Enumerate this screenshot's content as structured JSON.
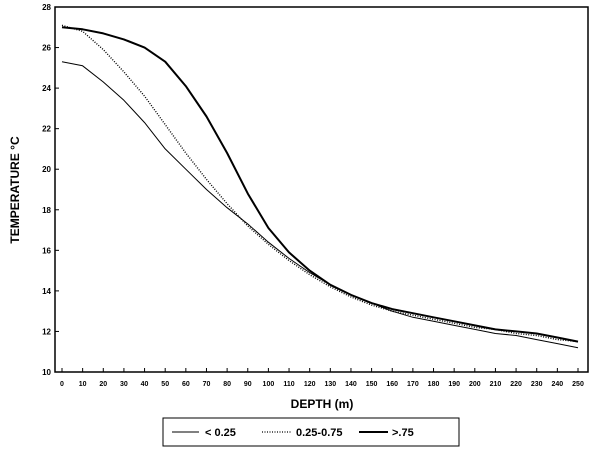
{
  "chart_data": {
    "type": "line",
    "xlabel": "DEPTH (m)",
    "ylabel": "TEMPERATURE °C",
    "xlim": [
      0,
      250
    ],
    "ylim": [
      10,
      28
    ],
    "x_ticks": [
      0,
      10,
      20,
      30,
      40,
      50,
      60,
      70,
      80,
      90,
      100,
      110,
      120,
      130,
      140,
      150,
      160,
      170,
      180,
      190,
      200,
      210,
      220,
      230,
      240,
      250
    ],
    "y_ticks": [
      10,
      12,
      14,
      16,
      18,
      20,
      22,
      24,
      26,
      28
    ],
    "grid": false,
    "legend_position": "bottom",
    "series": [
      {
        "name": "< 0.25",
        "style": "solid-thin",
        "x": [
          0,
          10,
          20,
          30,
          40,
          50,
          60,
          70,
          80,
          90,
          100,
          110,
          120,
          130,
          140,
          150,
          160,
          170,
          180,
          190,
          200,
          210,
          220,
          230,
          240,
          250
        ],
        "y": [
          25.3,
          25.1,
          24.3,
          23.4,
          22.3,
          21.0,
          20.0,
          19.0,
          18.1,
          17.3,
          16.4,
          15.6,
          14.9,
          14.3,
          13.8,
          13.4,
          13.0,
          12.7,
          12.5,
          12.3,
          12.1,
          11.9,
          11.8,
          11.6,
          11.4,
          11.2
        ]
      },
      {
        "name": "0.25-0.75",
        "style": "dotted",
        "x": [
          0,
          10,
          20,
          30,
          40,
          50,
          60,
          70,
          80,
          90,
          100,
          110,
          120,
          130,
          140,
          150,
          160,
          170,
          180,
          190,
          200,
          210,
          220,
          230,
          240,
          250
        ],
        "y": [
          27.1,
          26.8,
          25.9,
          24.8,
          23.6,
          22.2,
          20.8,
          19.5,
          18.3,
          17.2,
          16.3,
          15.5,
          14.8,
          14.2,
          13.7,
          13.3,
          13.0,
          12.8,
          12.6,
          12.4,
          12.2,
          12.1,
          11.9,
          11.8,
          11.6,
          11.5
        ]
      },
      {
        "name": ">.75",
        "style": "solid-thick",
        "x": [
          0,
          10,
          20,
          30,
          40,
          50,
          60,
          70,
          80,
          90,
          100,
          110,
          120,
          130,
          140,
          150,
          160,
          170,
          180,
          190,
          200,
          210,
          220,
          230,
          240,
          250
        ],
        "y": [
          27.0,
          26.9,
          26.7,
          26.4,
          26.0,
          25.3,
          24.1,
          22.6,
          20.8,
          18.8,
          17.1,
          15.9,
          15.0,
          14.3,
          13.8,
          13.4,
          13.1,
          12.9,
          12.7,
          12.5,
          12.3,
          12.1,
          12.0,
          11.9,
          11.7,
          11.5
        ]
      }
    ]
  }
}
